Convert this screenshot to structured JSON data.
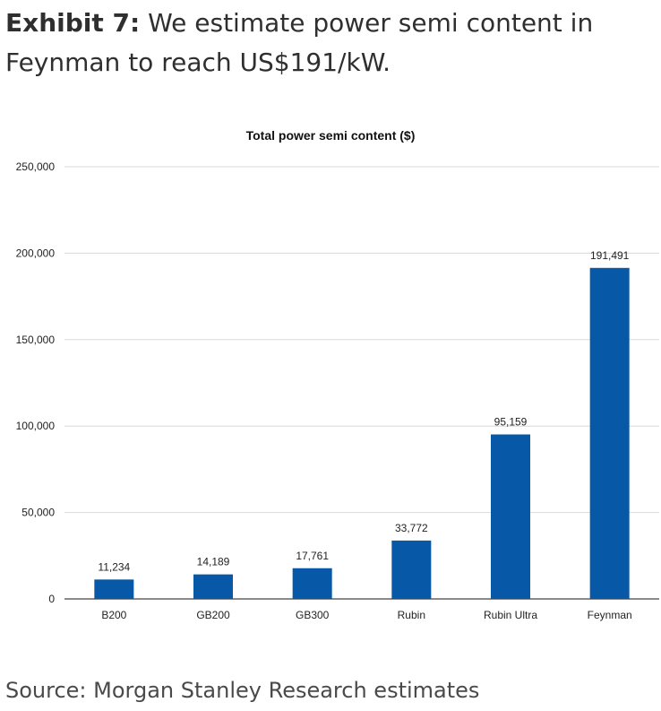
{
  "exhibit": {
    "label": "Exhibit 7:",
    "title": "We estimate power semi content in Feynman to reach US$191/kW."
  },
  "source": "Source: Morgan Stanley Research estimates",
  "colors": {
    "bar": "#0759a8",
    "grid": "#d9d9d9",
    "text": "#222222"
  },
  "chart_data": {
    "type": "bar",
    "title": "Total power semi content ($)",
    "xlabel": "",
    "ylabel": "",
    "categories": [
      "B200",
      "GB200",
      "GB300",
      "Rubin",
      "Rubin Ultra",
      "Feynman"
    ],
    "values": [
      11234,
      14189,
      17761,
      33772,
      95159,
      191491
    ],
    "value_labels": [
      "11,234",
      "14,189",
      "17,761",
      "33,772",
      "95,159",
      "191,491"
    ],
    "ylim": [
      0,
      250000
    ],
    "yticks": [
      0,
      50000,
      100000,
      150000,
      200000,
      250000
    ],
    "ytick_labels": [
      "0",
      "50,000",
      "100,000",
      "150,000",
      "200,000",
      "250,000"
    ],
    "grid": true,
    "legend": "none"
  }
}
